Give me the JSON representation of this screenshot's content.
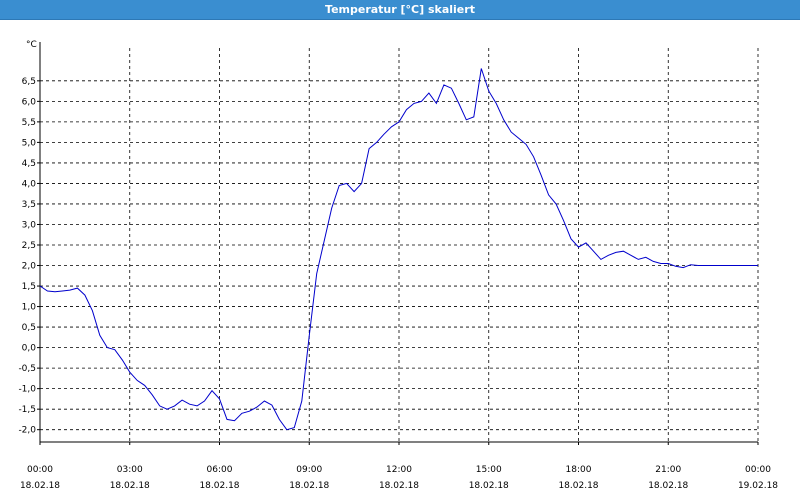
{
  "window": {
    "title": "Temperatur [°C] skaliert",
    "title_bar_color": "#3a8ed0"
  },
  "chart_data": {
    "type": "line",
    "title": "Temperatur [°C] skaliert",
    "ylabel": "°C",
    "xlabel": "",
    "ylim": [
      -2.3,
      7.3
    ],
    "xlim": [
      0,
      24
    ],
    "grid": true,
    "line_color": "#0000cc",
    "yticks": [
      "-2,0",
      "-1,5",
      "-1,0",
      "-0,5",
      "0,0",
      "0,5",
      "1,0",
      "1,5",
      "2,0",
      "2,5",
      "3,0",
      "3,5",
      "4,0",
      "4,5",
      "5,0",
      "5,5",
      "6,0",
      "6,5"
    ],
    "ytick_values": [
      -2.0,
      -1.5,
      -1.0,
      -0.5,
      0.0,
      0.5,
      1.0,
      1.5,
      2.0,
      2.5,
      3.0,
      3.5,
      4.0,
      4.5,
      5.0,
      5.5,
      6.0,
      6.5
    ],
    "xticks": [
      {
        "time": "00:00",
        "date": "18.02.18"
      },
      {
        "time": "03:00",
        "date": "18.02.18"
      },
      {
        "time": "06:00",
        "date": "18.02.18"
      },
      {
        "time": "09:00",
        "date": "18.02.18"
      },
      {
        "time": "12:00",
        "date": "18.02.18"
      },
      {
        "time": "15:00",
        "date": "18.02.18"
      },
      {
        "time": "18:00",
        "date": "18.02.18"
      },
      {
        "time": "21:00",
        "date": "18.02.18"
      },
      {
        "time": "00:00",
        "date": "19.02.18"
      }
    ],
    "xtick_hours": [
      0,
      3,
      6,
      9,
      12,
      15,
      18,
      21,
      24
    ],
    "series": [
      {
        "x": [
          0,
          0.25,
          0.5,
          0.75,
          1.0,
          1.25,
          1.5,
          1.75,
          2.0,
          2.25,
          2.5,
          2.75,
          3.0,
          3.25,
          3.5,
          3.75,
          4.0,
          4.25,
          4.5,
          4.75,
          5.0,
          5.25,
          5.5,
          5.75,
          6.0,
          6.25,
          6.5,
          6.75,
          7.0,
          7.25,
          7.5,
          7.75,
          8.0,
          8.25,
          8.5,
          8.75,
          9.0,
          9.25,
          9.5,
          9.75,
          10.0,
          10.25,
          10.5,
          10.75,
          11.0,
          11.25,
          11.5,
          11.75,
          12.0,
          12.25,
          12.5,
          12.75,
          13.0,
          13.25,
          13.5,
          13.75,
          14.0,
          14.25,
          14.5,
          14.75,
          15.0,
          15.25,
          15.5,
          15.75,
          16.0,
          16.25,
          16.5,
          16.75,
          17.0,
          17.25,
          17.5,
          17.75,
          18.0,
          18.25,
          18.5,
          18.75,
          19.0,
          19.25,
          19.5,
          19.75,
          20.0,
          20.25,
          20.5,
          20.75,
          21.0,
          21.25,
          21.5,
          21.75,
          22.0,
          22.25,
          22.5,
          22.75,
          23.0,
          23.25,
          23.5,
          23.75,
          24.0
        ],
        "y": [
          1.5,
          1.38,
          1.36,
          1.38,
          1.4,
          1.45,
          1.28,
          0.9,
          0.3,
          0.0,
          -0.05,
          -0.3,
          -0.6,
          -0.8,
          -0.92,
          -1.15,
          -1.42,
          -1.5,
          -1.42,
          -1.28,
          -1.38,
          -1.42,
          -1.3,
          -1.05,
          -1.25,
          -1.75,
          -1.78,
          -1.6,
          -1.55,
          -1.45,
          -1.3,
          -1.4,
          -1.75,
          -2.0,
          -1.95,
          -1.3,
          0.3,
          1.8,
          2.6,
          3.4,
          3.95,
          4.0,
          3.8,
          4.0,
          4.85,
          5.0,
          5.2,
          5.38,
          5.5,
          5.8,
          5.95,
          6.0,
          6.2,
          5.95,
          6.4,
          6.32,
          5.95,
          5.55,
          5.62,
          6.8,
          6.25,
          5.95,
          5.55,
          5.25,
          5.1,
          4.95,
          4.65,
          4.2,
          3.72,
          3.5,
          3.1,
          2.65,
          2.45,
          2.55,
          2.35,
          2.15,
          2.25,
          2.32,
          2.35,
          2.25,
          2.15,
          2.2,
          2.1,
          2.05,
          2.05,
          1.98,
          1.95,
          2.02,
          2.0,
          2.0,
          2.0,
          2.0,
          2.0,
          2.0,
          2.0,
          2.0,
          2.0
        ]
      }
    ]
  }
}
